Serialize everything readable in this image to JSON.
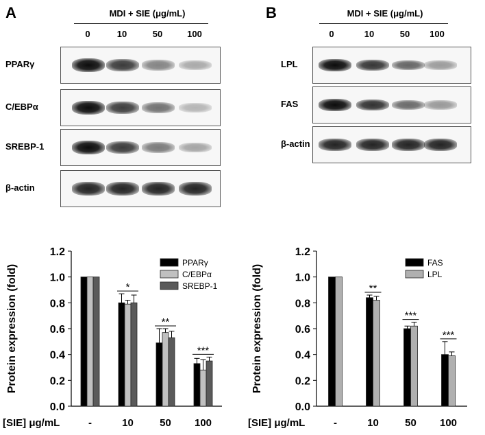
{
  "panel_a": {
    "letter": "A",
    "header": "MDI  + SIE (μg/mL)",
    "doses": [
      "0",
      "10",
      "50",
      "100"
    ],
    "blots": [
      {
        "label": "PPARγ",
        "intensity": [
          1.0,
          0.8,
          0.49,
          0.33
        ]
      },
      {
        "label": "C/EBPα",
        "intensity": [
          1.0,
          0.79,
          0.57,
          0.28
        ]
      },
      {
        "label": "SREBP-1",
        "intensity": [
          1.0,
          0.8,
          0.53,
          0.35
        ]
      },
      {
        "label": "β-actin",
        "intensity": [
          0.9,
          0.9,
          0.9,
          0.9
        ]
      }
    ]
  },
  "panel_b": {
    "letter": "B",
    "header": "MDI  + SIE (μg/mL)",
    "doses": [
      "0",
      "10",
      "50",
      "100"
    ],
    "blots": [
      {
        "label": "LPL",
        "intensity": [
          1.0,
          0.82,
          0.62,
          0.39
        ]
      },
      {
        "label": "FAS",
        "intensity": [
          1.0,
          0.84,
          0.6,
          0.4
        ]
      },
      {
        "label": "β-actin",
        "intensity": [
          0.9,
          0.9,
          0.9,
          0.9
        ]
      }
    ]
  },
  "chart_data": [
    {
      "type": "bar",
      "title": "",
      "xlabel": "[SIE] μg/mL",
      "ylabel": "Protein expression (fold)",
      "ylim": [
        0,
        1.2
      ],
      "yticks": [
        "0.0",
        "0.2",
        "0.4",
        "0.6",
        "0.8",
        "1.0",
        "1.2"
      ],
      "categories": [
        "-",
        "10",
        "50",
        "100"
      ],
      "series": [
        {
          "name": "PPARγ",
          "color": "#000000",
          "values": [
            1.0,
            0.8,
            0.49,
            0.33
          ],
          "errors": [
            0,
            0.07,
            0.11,
            0.04
          ]
        },
        {
          "name": "C/EBPα",
          "color": "#c0c0c0",
          "values": [
            1.0,
            0.79,
            0.57,
            0.28
          ],
          "errors": [
            0,
            0.03,
            0.03,
            0.08
          ]
        },
        {
          "name": "SREBP-1",
          "color": "#5a5a5a",
          "values": [
            1.0,
            0.8,
            0.53,
            0.35
          ],
          "errors": [
            0,
            0.06,
            0.05,
            0.03
          ]
        }
      ],
      "significance": [
        "",
        "*",
        "**",
        "***"
      ],
      "legend_position": "top-right"
    },
    {
      "type": "bar",
      "title": "",
      "xlabel": "[SIE] μg/mL",
      "ylabel": "Protein expression (fold)",
      "ylim": [
        0,
        1.2
      ],
      "yticks": [
        "0.0",
        "0.2",
        "0.4",
        "0.6",
        "0.8",
        "1.0",
        "1.2"
      ],
      "categories": [
        "-",
        "10",
        "50",
        "100"
      ],
      "series": [
        {
          "name": "FAS",
          "color": "#000000",
          "values": [
            1.0,
            0.84,
            0.6,
            0.4
          ],
          "errors": [
            0,
            0.02,
            0.02,
            0.1
          ]
        },
        {
          "name": "LPL",
          "color": "#b0b0b0",
          "values": [
            1.0,
            0.82,
            0.62,
            0.39
          ],
          "errors": [
            0,
            0.03,
            0.03,
            0.03
          ]
        }
      ],
      "significance": [
        "",
        "**",
        "***",
        "***"
      ],
      "legend_position": "top-right"
    }
  ]
}
